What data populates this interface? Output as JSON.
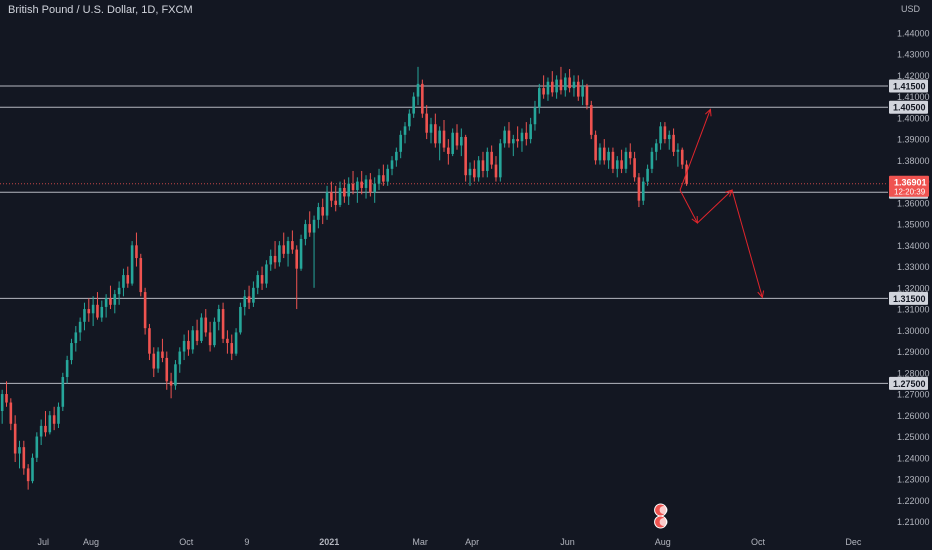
{
  "header": {
    "symbol_title": "British Pound / U.S. Dollar, 1D, FXCM",
    "currency": "USD"
  },
  "colors": {
    "background": "#131722",
    "up": "#26a69a",
    "down": "#ef5350",
    "level_line": "#d1d4dc",
    "projection": "#e0252c",
    "axis_text": "#b2b5be",
    "label_bg": "#d1d4dc",
    "label_text": "#131722",
    "price_label_bg": "#ef5350"
  },
  "chart_data": {
    "type": "candlestick",
    "title": "British Pound / U.S. Dollar, 1D, FXCM",
    "y_ticks": [
      "1.44000",
      "1.43000",
      "1.42000",
      "1.41000",
      "1.40000",
      "1.39000",
      "1.38000",
      "1.37000",
      "1.36000",
      "1.35000",
      "1.34000",
      "1.33000",
      "1.32000",
      "1.31000",
      "1.30000",
      "1.29000",
      "1.28000",
      "1.27000",
      "1.26000",
      "1.25000",
      "1.24000",
      "1.23000",
      "1.22000",
      "1.21000"
    ],
    "ylim": [
      1.206,
      1.447
    ],
    "x_ticks": [
      {
        "label": "Jul",
        "index": 10
      },
      {
        "label": "Aug",
        "index": 21
      },
      {
        "label": "Oct",
        "index": 43
      },
      {
        "label": "9",
        "index": 57
      },
      {
        "label": "2021",
        "index": 76
      },
      {
        "label": "Mar",
        "index": 97
      },
      {
        "label": "Apr",
        "index": 109
      },
      {
        "label": "Jun",
        "index": 131
      },
      {
        "label": "Aug",
        "index": 153
      },
      {
        "label": "Oct",
        "index": 175
      },
      {
        "label": "Dec",
        "index": 197
      }
    ],
    "xlim": [
      0,
      205
    ],
    "last_price": 1.36901,
    "countdown": "12:20:39",
    "levels": [
      "1.41500",
      "1.40500",
      "1.36500",
      "1.31500",
      "1.27500"
    ],
    "candles": [
      [
        1.262,
        1.272,
        1.256,
        1.27
      ],
      [
        1.27,
        1.276,
        1.264,
        1.266
      ],
      [
        1.266,
        1.268,
        1.253,
        1.256
      ],
      [
        1.256,
        1.26,
        1.238,
        1.242
      ],
      [
        1.242,
        1.248,
        1.235,
        1.245
      ],
      [
        1.245,
        1.248,
        1.232,
        1.235
      ],
      [
        1.235,
        1.237,
        1.225,
        1.229
      ],
      [
        1.229,
        1.242,
        1.228,
        1.24
      ],
      [
        1.24,
        1.252,
        1.238,
        1.25
      ],
      [
        1.25,
        1.258,
        1.246,
        1.255
      ],
      [
        1.255,
        1.262,
        1.25,
        1.252
      ],
      [
        1.252,
        1.262,
        1.251,
        1.26
      ],
      [
        1.26,
        1.264,
        1.253,
        1.256
      ],
      [
        1.256,
        1.266,
        1.254,
        1.264
      ],
      [
        1.264,
        1.28,
        1.262,
        1.278
      ],
      [
        1.278,
        1.288,
        1.275,
        1.286
      ],
      [
        1.286,
        1.296,
        1.284,
        1.294
      ],
      [
        1.294,
        1.302,
        1.29,
        1.299
      ],
      [
        1.299,
        1.306,
        1.295,
        1.304
      ],
      [
        1.304,
        1.313,
        1.3,
        1.31
      ],
      [
        1.31,
        1.315,
        1.304,
        1.308
      ],
      [
        1.308,
        1.316,
        1.302,
        1.312
      ],
      [
        1.312,
        1.318,
        1.305,
        1.306
      ],
      [
        1.306,
        1.314,
        1.304,
        1.311
      ],
      [
        1.311,
        1.317,
        1.306,
        1.315
      ],
      [
        1.315,
        1.321,
        1.31,
        1.312
      ],
      [
        1.312,
        1.319,
        1.308,
        1.317
      ],
      [
        1.317,
        1.323,
        1.312,
        1.32
      ],
      [
        1.32,
        1.329,
        1.316,
        1.326
      ],
      [
        1.326,
        1.33,
        1.32,
        1.322
      ],
      [
        1.322,
        1.342,
        1.321,
        1.34
      ],
      [
        1.34,
        1.346,
        1.33,
        1.334
      ],
      [
        1.334,
        1.336,
        1.316,
        1.318
      ],
      [
        1.318,
        1.32,
        1.298,
        1.301
      ],
      [
        1.301,
        1.303,
        1.286,
        1.289
      ],
      [
        1.289,
        1.292,
        1.278,
        1.282
      ],
      [
        1.282,
        1.292,
        1.28,
        1.29
      ],
      [
        1.29,
        1.296,
        1.285,
        1.287
      ],
      [
        1.287,
        1.29,
        1.272,
        1.276
      ],
      [
        1.276,
        1.28,
        1.268,
        1.274
      ],
      [
        1.274,
        1.286,
        1.272,
        1.284
      ],
      [
        1.284,
        1.292,
        1.28,
        1.29
      ],
      [
        1.29,
        1.298,
        1.286,
        1.295
      ],
      [
        1.295,
        1.3,
        1.288,
        1.291
      ],
      [
        1.291,
        1.302,
        1.289,
        1.3
      ],
      [
        1.3,
        1.305,
        1.293,
        1.295
      ],
      [
        1.295,
        1.308,
        1.294,
        1.306
      ],
      [
        1.306,
        1.31,
        1.297,
        1.299
      ],
      [
        1.299,
        1.304,
        1.29,
        1.293
      ],
      [
        1.293,
        1.306,
        1.292,
        1.304
      ],
      [
        1.304,
        1.312,
        1.3,
        1.31
      ],
      [
        1.31,
        1.313,
        1.294,
        1.296
      ],
      [
        1.296,
        1.3,
        1.289,
        1.294
      ],
      [
        1.294,
        1.298,
        1.286,
        1.289
      ],
      [
        1.289,
        1.301,
        1.288,
        1.299
      ],
      [
        1.299,
        1.313,
        1.298,
        1.311
      ],
      [
        1.311,
        1.319,
        1.307,
        1.316
      ],
      [
        1.316,
        1.321,
        1.31,
        1.313
      ],
      [
        1.313,
        1.323,
        1.311,
        1.32
      ],
      [
        1.32,
        1.328,
        1.317,
        1.326
      ],
      [
        1.326,
        1.33,
        1.319,
        1.322
      ],
      [
        1.322,
        1.333,
        1.32,
        1.331
      ],
      [
        1.331,
        1.338,
        1.328,
        1.335
      ],
      [
        1.335,
        1.342,
        1.329,
        1.332
      ],
      [
        1.332,
        1.342,
        1.33,
        1.34
      ],
      [
        1.34,
        1.346,
        1.334,
        1.336
      ],
      [
        1.336,
        1.344,
        1.33,
        1.342
      ],
      [
        1.342,
        1.347,
        1.336,
        1.338
      ],
      [
        1.338,
        1.34,
        1.31,
        1.329
      ],
      [
        1.329,
        1.345,
        1.328,
        1.343
      ],
      [
        1.343,
        1.352,
        1.34,
        1.35
      ],
      [
        1.35,
        1.356,
        1.344,
        1.346
      ],
      [
        1.346,
        1.354,
        1.32,
        1.352
      ],
      [
        1.352,
        1.36,
        1.348,
        1.358
      ],
      [
        1.358,
        1.362,
        1.35,
        1.354
      ],
      [
        1.354,
        1.368,
        1.352,
        1.365
      ],
      [
        1.365,
        1.37,
        1.358,
        1.361
      ],
      [
        1.361,
        1.368,
        1.356,
        1.359
      ],
      [
        1.359,
        1.37,
        1.358,
        1.367
      ],
      [
        1.367,
        1.371,
        1.36,
        1.363
      ],
      [
        1.363,
        1.372,
        1.359,
        1.369
      ],
      [
        1.369,
        1.375,
        1.364,
        1.366
      ],
      [
        1.366,
        1.372,
        1.36,
        1.37
      ],
      [
        1.37,
        1.375,
        1.364,
        1.367
      ],
      [
        1.367,
        1.373,
        1.362,
        1.371
      ],
      [
        1.371,
        1.374,
        1.363,
        1.365
      ],
      [
        1.365,
        1.372,
        1.36,
        1.369
      ],
      [
        1.369,
        1.376,
        1.366,
        1.373
      ],
      [
        1.373,
        1.378,
        1.368,
        1.37
      ],
      [
        1.37,
        1.378,
        1.368,
        1.376
      ],
      [
        1.376,
        1.382,
        1.373,
        1.38
      ],
      [
        1.38,
        1.386,
        1.377,
        1.384
      ],
      [
        1.384,
        1.394,
        1.381,
        1.392
      ],
      [
        1.392,
        1.398,
        1.388,
        1.396
      ],
      [
        1.396,
        1.404,
        1.394,
        1.402
      ],
      [
        1.402,
        1.412,
        1.4,
        1.41
      ],
      [
        1.41,
        1.424,
        1.406,
        1.416
      ],
      [
        1.416,
        1.418,
        1.4,
        1.402
      ],
      [
        1.402,
        1.406,
        1.39,
        1.393
      ],
      [
        1.393,
        1.4,
        1.388,
        1.397
      ],
      [
        1.397,
        1.402,
        1.386,
        1.388
      ],
      [
        1.388,
        1.396,
        1.38,
        1.394
      ],
      [
        1.394,
        1.399,
        1.384,
        1.386
      ],
      [
        1.386,
        1.39,
        1.378,
        1.383
      ],
      [
        1.383,
        1.395,
        1.382,
        1.393
      ],
      [
        1.393,
        1.397,
        1.385,
        1.387
      ],
      [
        1.387,
        1.395,
        1.382,
        1.391
      ],
      [
        1.391,
        1.392,
        1.37,
        1.373
      ],
      [
        1.373,
        1.379,
        1.368,
        1.376
      ],
      [
        1.376,
        1.38,
        1.37,
        1.372
      ],
      [
        1.372,
        1.382,
        1.37,
        1.38
      ],
      [
        1.38,
        1.384,
        1.372,
        1.375
      ],
      [
        1.375,
        1.386,
        1.372,
        1.384
      ],
      [
        1.384,
        1.387,
        1.376,
        1.378
      ],
      [
        1.378,
        1.382,
        1.37,
        1.372
      ],
      [
        1.372,
        1.39,
        1.37,
        1.388
      ],
      [
        1.388,
        1.396,
        1.386,
        1.394
      ],
      [
        1.394,
        1.398,
        1.386,
        1.388
      ],
      [
        1.388,
        1.392,
        1.382,
        1.39
      ],
      [
        1.39,
        1.396,
        1.386,
        1.389
      ],
      [
        1.389,
        1.395,
        1.384,
        1.393
      ],
      [
        1.393,
        1.398,
        1.387,
        1.39
      ],
      [
        1.39,
        1.4,
        1.388,
        1.397
      ],
      [
        1.397,
        1.408,
        1.394,
        1.405
      ],
      [
        1.405,
        1.416,
        1.402,
        1.414
      ],
      [
        1.414,
        1.42,
        1.409,
        1.411
      ],
      [
        1.411,
        1.419,
        1.408,
        1.417
      ],
      [
        1.417,
        1.422,
        1.41,
        1.412
      ],
      [
        1.412,
        1.42,
        1.409,
        1.418
      ],
      [
        1.418,
        1.424,
        1.411,
        1.413
      ],
      [
        1.413,
        1.421,
        1.41,
        1.419
      ],
      [
        1.419,
        1.423,
        1.412,
        1.414
      ],
      [
        1.414,
        1.42,
        1.41,
        1.417
      ],
      [
        1.417,
        1.42,
        1.408,
        1.41
      ],
      [
        1.41,
        1.418,
        1.406,
        1.415
      ],
      [
        1.415,
        1.416,
        1.404,
        1.406
      ],
      [
        1.406,
        1.408,
        1.39,
        1.392
      ],
      [
        1.392,
        1.394,
        1.378,
        1.38
      ],
      [
        1.38,
        1.388,
        1.378,
        1.386
      ],
      [
        1.386,
        1.39,
        1.378,
        1.38
      ],
      [
        1.38,
        1.386,
        1.376,
        1.384
      ],
      [
        1.384,
        1.386,
        1.374,
        1.376
      ],
      [
        1.376,
        1.382,
        1.372,
        1.38
      ],
      [
        1.38,
        1.385,
        1.374,
        1.376
      ],
      [
        1.376,
        1.386,
        1.374,
        1.384
      ],
      [
        1.384,
        1.388,
        1.378,
        1.381
      ],
      [
        1.381,
        1.384,
        1.37,
        1.372
      ],
      [
        1.372,
        1.374,
        1.358,
        1.361
      ],
      [
        1.361,
        1.372,
        1.359,
        1.37
      ],
      [
        1.37,
        1.378,
        1.368,
        1.376
      ],
      [
        1.376,
        1.386,
        1.374,
        1.384
      ],
      [
        1.384,
        1.39,
        1.38,
        1.388
      ],
      [
        1.388,
        1.398,
        1.385,
        1.396
      ],
      [
        1.396,
        1.398,
        1.388,
        1.39
      ],
      [
        1.39,
        1.394,
        1.385,
        1.392
      ],
      [
        1.392,
        1.395,
        1.382,
        1.384
      ],
      [
        1.384,
        1.388,
        1.377,
        1.385
      ],
      [
        1.385,
        1.386,
        1.376,
        1.378
      ],
      [
        1.378,
        1.38,
        1.368,
        1.369
      ]
    ],
    "projection_path": [
      [
        157,
        1.366
      ],
      [
        161,
        1.3505
      ],
      [
        169,
        1.366
      ],
      [
        176,
        1.3155
      ]
    ],
    "projection_arrow_up": [
      [
        157,
        1.366
      ],
      [
        164,
        1.404
      ]
    ]
  }
}
